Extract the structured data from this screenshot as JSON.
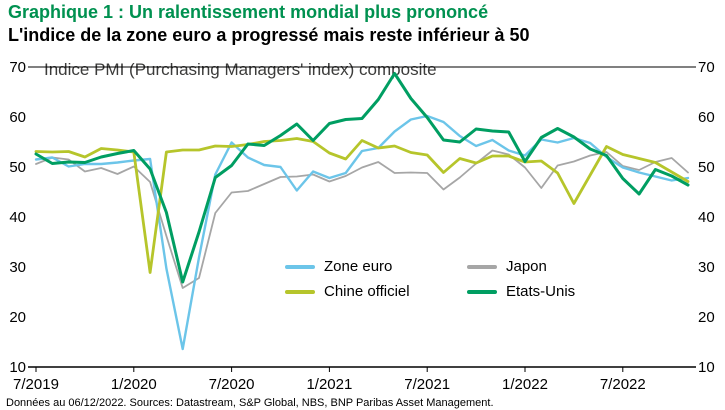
{
  "header": {
    "title": "Graphique 1 : Un ralentissement mondial plus prononcé",
    "subtitle": "L'indice de la zone euro a progressé mais reste inférieur à 50"
  },
  "footer": {
    "text": "Données au 06/12/2022. Sources: Datastream, S&P Global, NBS, BNP Paribas Asset Management."
  },
  "colors": {
    "title_green": "#009150",
    "axis_black": "#000000"
  },
  "chart_data": {
    "type": "line",
    "title": "Indice PMI (Purchasing Managers' index) composite",
    "x_start": "7/2019",
    "x_end": "11/2022",
    "x_frequency": "monthly",
    "x_tick_labels": [
      "7/2019",
      "1/2020",
      "7/2020",
      "1/2021",
      "7/2021",
      "1/2022",
      "7/2022"
    ],
    "x_tick_indices": [
      0,
      6,
      12,
      18,
      24,
      30,
      36
    ],
    "yticks": [
      10,
      20,
      30,
      40,
      50,
      60,
      70
    ],
    "ylim": [
      10,
      70
    ],
    "grid": false,
    "legend_position": "inside-bottom-center",
    "series": [
      {
        "name": "Zone euro",
        "color": "#6CC5E9",
        "width": 2.4,
        "values": [
          51.5,
          51.9,
          50.1,
          50.6,
          50.6,
          50.9,
          51.3,
          51.6,
          29.7,
          13.6,
          31.9,
          48.5,
          54.9,
          51.9,
          50.4,
          50.0,
          45.3,
          49.1,
          47.8,
          48.8,
          53.2,
          53.8,
          57.1,
          59.5,
          60.2,
          59.0,
          56.2,
          54.2,
          55.4,
          53.3,
          52.3,
          55.5,
          54.9,
          55.8,
          54.8,
          52.0,
          49.9,
          48.9,
          48.1,
          47.3,
          47.8
        ]
      },
      {
        "name": "Japon",
        "color": "#A6A6A6",
        "width": 1.8,
        "values": [
          50.6,
          51.9,
          51.5,
          49.1,
          49.8,
          48.6,
          50.1,
          47.0,
          36.2,
          25.8,
          27.8,
          40.8,
          44.9,
          45.2,
          46.6,
          48.0,
          48.1,
          48.5,
          47.1,
          48.2,
          49.9,
          51.0,
          48.8,
          48.9,
          48.8,
          45.5,
          47.9,
          50.7,
          53.3,
          52.5,
          49.9,
          45.8,
          50.3,
          51.1,
          52.3,
          53.0,
          50.2,
          49.4,
          51.0,
          51.8,
          48.9
        ]
      },
      {
        "name": "Chine officiel",
        "color": "#B6C52B",
        "width": 2.8,
        "values": [
          53.1,
          53.0,
          53.1,
          52.0,
          53.7,
          53.4,
          53.0,
          28.9,
          53.0,
          53.4,
          53.4,
          54.2,
          54.1,
          54.5,
          55.1,
          55.3,
          55.7,
          55.1,
          52.8,
          51.6,
          55.3,
          53.8,
          54.2,
          52.9,
          52.4,
          48.9,
          51.7,
          50.8,
          52.2,
          52.2,
          51.0,
          51.2,
          48.8,
          42.7,
          48.4,
          54.1,
          52.5,
          51.7,
          50.9,
          49.0,
          47.1
        ]
      },
      {
        "name": "Etats-Unis",
        "color": "#009E62",
        "width": 3,
        "values": [
          52.6,
          50.7,
          51.0,
          50.9,
          52.0,
          52.7,
          53.3,
          49.6,
          40.9,
          27.0,
          37.0,
          47.9,
          50.3,
          54.6,
          54.3,
          56.3,
          58.6,
          55.3,
          58.7,
          59.5,
          59.7,
          63.5,
          68.7,
          63.7,
          59.9,
          55.4,
          55.0,
          57.6,
          57.2,
          57.0,
          51.1,
          55.9,
          57.7,
          56.0,
          53.6,
          52.3,
          47.7,
          44.6,
          49.5,
          48.2,
          46.4
        ]
      }
    ]
  }
}
